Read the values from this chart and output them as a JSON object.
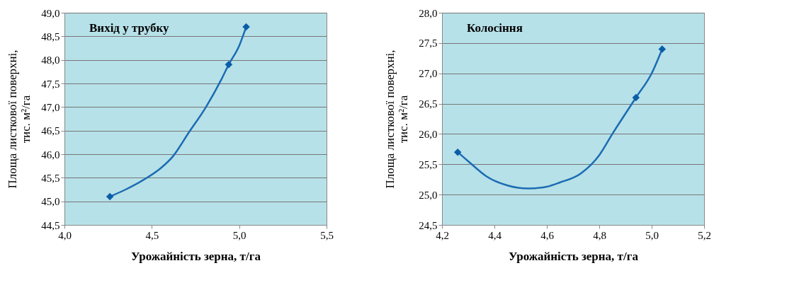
{
  "chart_data": [
    {
      "type": "line",
      "title": "Вихід у трубку",
      "xlabel": "Урожайність зерна, т/га",
      "ylabel": "Площа листкової поверхні, тис. м²/га",
      "series": [
        {
          "color": "#1b6cb3",
          "marker": "none",
          "x": [
            4.26,
            4.35,
            4.45,
            4.55,
            4.62,
            4.71,
            4.81,
            4.9,
            4.94,
            5.0,
            5.04
          ],
          "values": [
            45.1,
            45.25,
            45.45,
            45.7,
            45.95,
            46.45,
            47.0,
            47.6,
            47.9,
            48.3,
            48.7
          ]
        },
        {
          "type": "scatter",
          "color": "#0a5ea8",
          "marker": "diamond",
          "x": [
            4.26,
            4.94,
            5.04
          ],
          "values": [
            45.1,
            47.9,
            48.7
          ]
        }
      ],
      "xlim": [
        4.0,
        5.5
      ],
      "xticks": [
        {
          "value": 4.0,
          "label": "4,0"
        },
        {
          "value": 4.5,
          "label": "4,5"
        },
        {
          "value": 5.0,
          "label": "5,0"
        },
        {
          "value": 5.5,
          "label": "5,5"
        }
      ],
      "ylim": [
        44.5,
        49.0
      ],
      "yticks": [
        {
          "value": 44.5,
          "label": "44,5"
        },
        {
          "value": 45.0,
          "label": "45,0"
        },
        {
          "value": 45.5,
          "label": "45,5"
        },
        {
          "value": 46.0,
          "label": "46,0"
        },
        {
          "value": 46.5,
          "label": "46,5"
        },
        {
          "value": 47.0,
          "label": "47,0"
        },
        {
          "value": 47.5,
          "label": "47,5"
        },
        {
          "value": 48.0,
          "label": "48,0"
        },
        {
          "value": 48.5,
          "label": "48,5"
        },
        {
          "value": 49.0,
          "label": "49,0"
        }
      ],
      "grid": "y"
    },
    {
      "type": "line",
      "title": "Колосіння",
      "xlabel": "Урожайність зерна, т/га",
      "ylabel": "Площа листкової поверхні, тис. м²/га",
      "series": [
        {
          "color": "#1b6cb3",
          "marker": "none",
          "x": [
            4.26,
            4.3,
            4.37,
            4.45,
            4.53,
            4.6,
            4.65,
            4.73,
            4.8,
            4.85,
            4.94,
            5.0,
            5.04
          ],
          "values": [
            25.7,
            25.55,
            25.3,
            25.15,
            25.1,
            25.13,
            25.2,
            25.35,
            25.65,
            26.0,
            26.6,
            27.0,
            27.4
          ]
        },
        {
          "type": "scatter",
          "color": "#0a5ea8",
          "marker": "diamond",
          "x": [
            4.26,
            4.94,
            5.04
          ],
          "values": [
            25.7,
            26.6,
            27.4
          ]
        }
      ],
      "xlim": [
        4.2,
        5.2
      ],
      "xticks": [
        {
          "value": 4.2,
          "label": "4,2"
        },
        {
          "value": 4.4,
          "label": "4,4"
        },
        {
          "value": 4.6,
          "label": "4,6"
        },
        {
          "value": 4.8,
          "label": "4,8"
        },
        {
          "value": 5.0,
          "label": "5,0"
        },
        {
          "value": 5.2,
          "label": "5,2"
        }
      ],
      "ylim": [
        24.5,
        28.0
      ],
      "yticks": [
        {
          "value": 24.5,
          "label": "24,5"
        },
        {
          "value": 25.0,
          "label": "25,0"
        },
        {
          "value": 25.5,
          "label": "25,5"
        },
        {
          "value": 26.0,
          "label": "26,0"
        },
        {
          "value": 26.5,
          "label": "26,5"
        },
        {
          "value": 27.0,
          "label": "27,0"
        },
        {
          "value": 27.5,
          "label": "27,5"
        },
        {
          "value": 28.0,
          "label": "28,0"
        }
      ],
      "grid": "y"
    }
  ]
}
